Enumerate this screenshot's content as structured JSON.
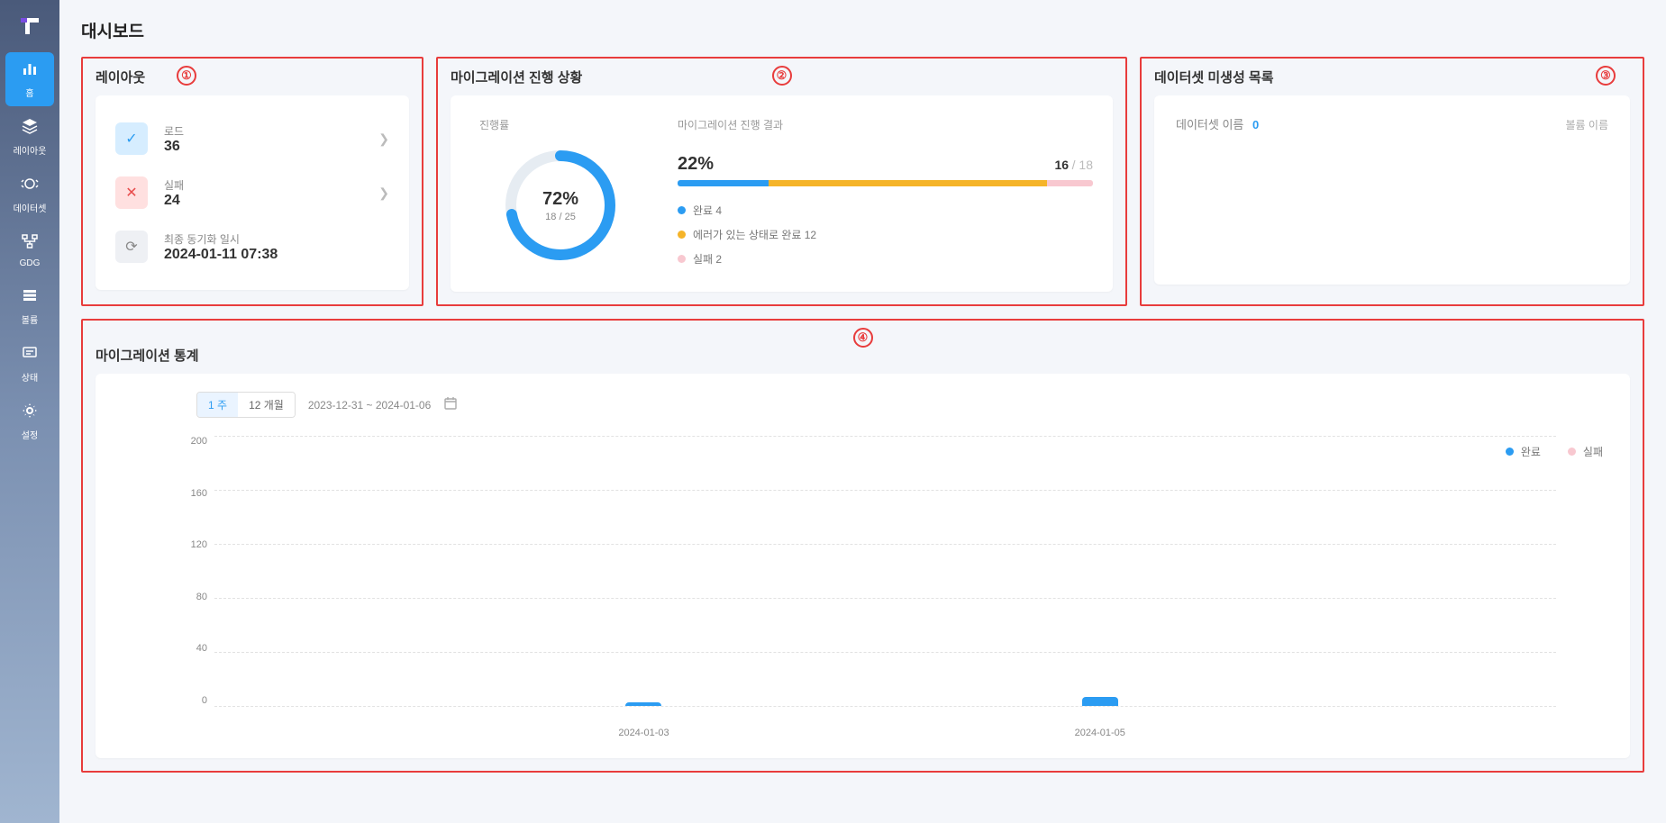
{
  "page_title": "대시보드",
  "sidebar": {
    "items": [
      {
        "label": "홈",
        "icon": "bar-chart",
        "active": true
      },
      {
        "label": "레이아웃",
        "icon": "layers",
        "active": false
      },
      {
        "label": "데이터셋",
        "icon": "target",
        "active": false
      },
      {
        "label": "GDG",
        "icon": "flow",
        "active": false
      },
      {
        "label": "볼륨",
        "icon": "list",
        "active": false
      },
      {
        "label": "상태",
        "icon": "chat",
        "active": false
      },
      {
        "label": "설정",
        "icon": "gear",
        "active": false
      }
    ]
  },
  "annotations": {
    "1": "①",
    "2": "②",
    "3": "③",
    "4": "④"
  },
  "layout_panel": {
    "title": "레이아웃",
    "rows": [
      {
        "icon": "check",
        "icon_style": "blue",
        "label": "로드",
        "value": "36",
        "chevron": true
      },
      {
        "icon": "cross",
        "icon_style": "red",
        "label": "실패",
        "value": "24",
        "chevron": true
      },
      {
        "icon": "sync",
        "icon_style": "gray",
        "label": "최종 동기화 일시",
        "value": "2024-01-11 07:38",
        "chevron": false
      }
    ]
  },
  "migration_panel": {
    "title": "마이그레이션 진행 상황",
    "progress_label": "진행률",
    "ring": {
      "percent": 72,
      "percent_text": "72%",
      "fraction_text": "18 / 25",
      "fg_color": "#2b9cf2",
      "bg_color": "#e6ecf2",
      "stroke_width": 12
    },
    "result_label": "마이그레이션 진행 결과",
    "bar_percent_text": "22%",
    "bar_count_done": "16",
    "bar_count_total": "/ 18",
    "bar_segments": [
      {
        "color": "#2b9cf2",
        "width_pct": 22
      },
      {
        "color": "#f5b429",
        "width_pct": 67
      },
      {
        "color": "#f8c8d0",
        "width_pct": 11
      }
    ],
    "legend": [
      {
        "color": "#2b9cf2",
        "label": "완료 4"
      },
      {
        "color": "#f5b429",
        "label": "에러가 있는 상태로 완료 12"
      },
      {
        "color": "#f8c8d0",
        "label": "실패 2"
      }
    ]
  },
  "dataset_panel": {
    "title": "데이터셋 미생성 목록",
    "name_label": "데이터셋 이름",
    "count": "0",
    "volume_label": "볼륨 이름"
  },
  "stats_panel": {
    "title": "마이그레이션 통계",
    "segments": [
      {
        "label": "1 주",
        "active": true
      },
      {
        "label": "12 개월",
        "active": false
      }
    ],
    "date_range": "2023-12-31 ~ 2024-01-06",
    "legend": [
      {
        "color": "#2b9cf2",
        "label": "완료"
      },
      {
        "color": "#f8c8d0",
        "label": "실패"
      }
    ],
    "chart": {
      "y_max": 200,
      "y_ticks": [
        200,
        160,
        120,
        80,
        40,
        0
      ],
      "grid_color": "#e2e2e2",
      "x_labels": [
        {
          "label": "2024-01-03",
          "pos_pct": 32
        },
        {
          "label": "2024-01-05",
          "pos_pct": 66
        }
      ],
      "bars": [
        {
          "x_pct": 32,
          "value": 3,
          "color": "#2b9cf2"
        },
        {
          "x_pct": 66,
          "value": 7,
          "color": "#2b9cf2"
        }
      ]
    }
  }
}
